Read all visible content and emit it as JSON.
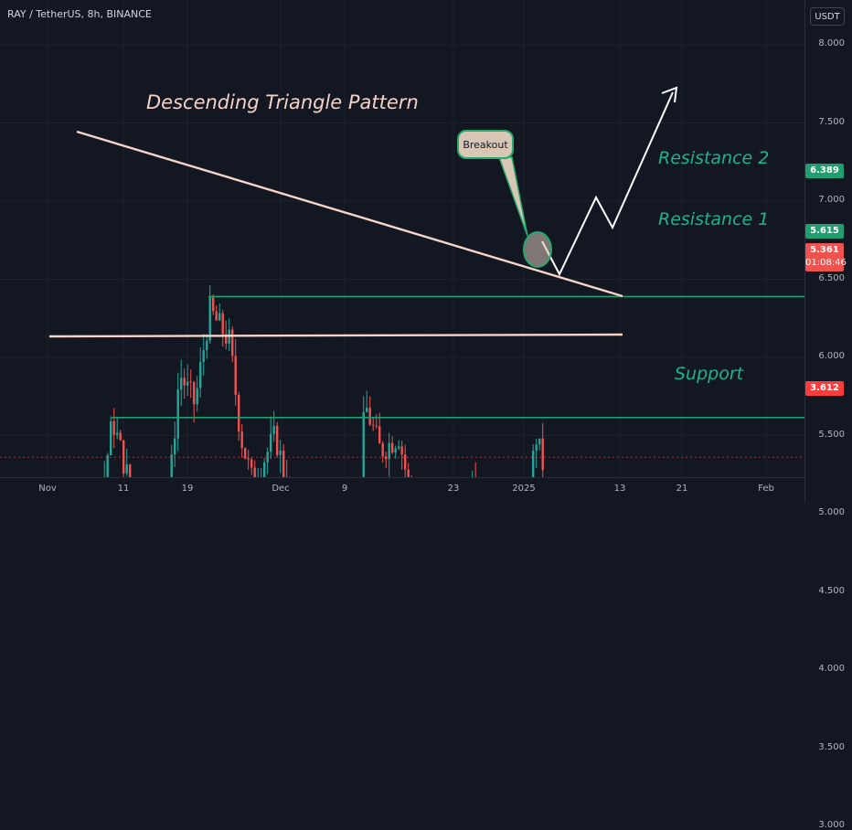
{
  "header": {
    "title": "RAY / TetherUS, 8h, BINANCE"
  },
  "axis": {
    "currency": "USDT",
    "y_ticks": [
      "8.000",
      "7.500",
      "7.000",
      "6.500",
      "6.000",
      "5.500",
      "5.000",
      "4.500",
      "4.000",
      "3.500",
      "3.000"
    ],
    "x_ticks": [
      "Nov",
      "11",
      "19",
      "Dec",
      "9",
      "23",
      "2025",
      "13",
      "21",
      "Feb"
    ]
  },
  "price_tags": {
    "resistance2": "6.389",
    "resistance1": "5.615",
    "current_price": "5.361",
    "countdown": "01:08:46",
    "support": "3.612"
  },
  "annotations": {
    "pattern_title": "Descending Triangle Pattern",
    "resistance2_label": "Resistance 2",
    "resistance1_label": "Resistance 1",
    "support_label": "Support",
    "breakout_label": "Breakout"
  },
  "colors": {
    "background": "#131722",
    "bull": "#26a69a",
    "bear": "#ef5350",
    "resistance_line": "#1f9f6f",
    "support_line": "#ff3b3b",
    "trendline": "#f5d5c8",
    "label_green": "#1db38c"
  },
  "chart_data": {
    "type": "candlestick",
    "x": [
      "Nov",
      "11",
      "19",
      "Dec",
      "9",
      "23",
      "2025"
    ],
    "levels": {
      "resistance_2": 6.389,
      "resistance_1": 5.615,
      "support": 3.612,
      "current": 5.361
    },
    "ylim": [
      2.6,
      8.4
    ]
  }
}
